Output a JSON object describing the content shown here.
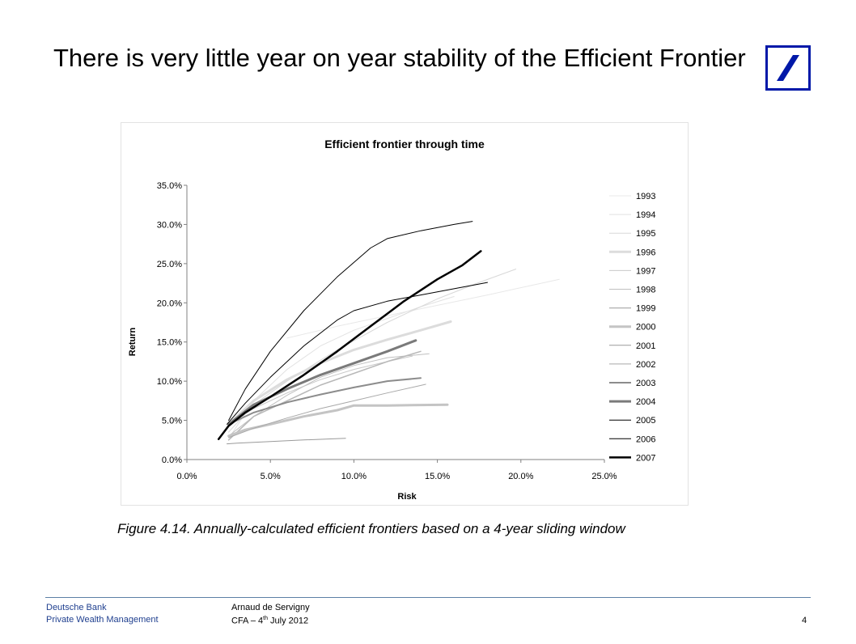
{
  "slide": {
    "title": "There is very little year on year stability of the Efficient Frontier",
    "caption": "Figure 4.14.  Annually-calculated efficient frontiers based on a 4-year sliding window"
  },
  "footer": {
    "company": "Deutsche Bank",
    "division": "Private Wealth Management",
    "author": "Arnaud de Servigny",
    "event_prefix": "CFA – 4",
    "event_sup": "th",
    "event_suffix": " July 2012",
    "page_number": "4"
  },
  "colors": {
    "brand_blue": "#0018a8",
    "footer_blue": "#1f3f8f"
  },
  "chart_data": {
    "type": "line",
    "title": "Efficient frontier through time",
    "xlabel": "Risk",
    "ylabel": "Return",
    "xlim": [
      0,
      25
    ],
    "ylim": [
      0,
      35
    ],
    "x_ticks": [
      "0.0%",
      "5.0%",
      "10.0%",
      "15.0%",
      "20.0%",
      "25.0%"
    ],
    "y_ticks": [
      "0.0%",
      "5.0%",
      "10.0%",
      "15.0%",
      "20.0%",
      "25.0%",
      "30.0%",
      "35.0%"
    ],
    "legend_position": "right",
    "series": [
      {
        "name": "1993",
        "color": "#e8e8e8",
        "width": 1,
        "x": [
          6.0,
          9.0,
          13.0,
          18.0,
          22.3
        ],
        "y": [
          15.5,
          17.0,
          18.8,
          21.0,
          23.0
        ]
      },
      {
        "name": "1994",
        "color": "#e2e2e2",
        "width": 1,
        "x": [
          2.6,
          4.0,
          6.0,
          8.0,
          10.0,
          12.0,
          14.0,
          16.0
        ],
        "y": [
          3.0,
          7.5,
          11.5,
          14.5,
          16.5,
          18.0,
          19.5,
          20.8
        ]
      },
      {
        "name": "1995",
        "color": "#d8d8d8",
        "width": 1,
        "x": [
          2.5,
          4.0,
          6.0,
          9.0,
          12.0,
          15.0,
          17.5,
          19.7
        ],
        "y": [
          3.5,
          7.0,
          10.0,
          14.0,
          17.5,
          20.5,
          22.6,
          24.3
        ]
      },
      {
        "name": "1996",
        "color": "#dcdcdc",
        "width": 3,
        "x": [
          2.5,
          4.0,
          6.0,
          8.0,
          10.0,
          12.0,
          14.0,
          15.8
        ],
        "y": [
          4.5,
          7.5,
          10.2,
          12.3,
          14.0,
          15.3,
          16.5,
          17.6
        ]
      },
      {
        "name": "1997",
        "color": "#c8c8c8",
        "width": 1,
        "x": [
          2.5,
          4.0,
          6.0,
          8.0,
          10.0,
          12.0,
          13.5
        ],
        "y": [
          4.5,
          6.5,
          8.5,
          10.2,
          11.5,
          12.5,
          13.2
        ]
      },
      {
        "name": "1998",
        "color": "#c0c0c0",
        "width": 1,
        "x": [
          2.5,
          4.0,
          6.0,
          8.0,
          10.0,
          12.0,
          14.5
        ],
        "y": [
          3.0,
          5.5,
          8.2,
          10.5,
          12.0,
          13.0,
          13.5
        ]
      },
      {
        "name": "1999",
        "color": "#b8b8b8",
        "width": 1.5,
        "x": [
          2.5,
          4.0,
          6.0,
          8.0,
          10.0,
          12.0,
          14.0
        ],
        "y": [
          2.5,
          5.5,
          7.5,
          9.5,
          11.0,
          12.5,
          13.8
        ]
      },
      {
        "name": "2000",
        "color": "#c4c4c4",
        "width": 3,
        "x": [
          2.5,
          3.5,
          5.0,
          7.0,
          9.0,
          10.0,
          12.0,
          15.6
        ],
        "y": [
          3.0,
          3.8,
          4.5,
          5.5,
          6.3,
          6.9,
          6.9,
          7.0
        ]
      },
      {
        "name": "2001",
        "color": "#9a9a9a",
        "width": 1,
        "x": [
          2.4,
          3.0,
          5.0,
          7.0,
          9.5
        ],
        "y": [
          2.0,
          2.1,
          2.3,
          2.5,
          2.7
        ]
      },
      {
        "name": "2002",
        "color": "#a8a8a8",
        "width": 1,
        "x": [
          2.5,
          4.0,
          6.0,
          8.0,
          10.0,
          12.0,
          14.3
        ],
        "y": [
          2.8,
          4.0,
          5.3,
          6.5,
          7.5,
          8.5,
          9.6
        ]
      },
      {
        "name": "2003",
        "color": "#8c8c8c",
        "width": 2,
        "x": [
          2.5,
          4.0,
          6.0,
          8.0,
          10.0,
          12.0,
          14.0
        ],
        "y": [
          4.5,
          6.0,
          7.3,
          8.3,
          9.2,
          10.0,
          10.4
        ]
      },
      {
        "name": "2004",
        "color": "#7a7a7a",
        "width": 3,
        "x": [
          2.5,
          4.0,
          6.0,
          8.0,
          10.0,
          12.0,
          13.7
        ],
        "y": [
          4.5,
          7.0,
          9.0,
          10.8,
          12.3,
          13.8,
          15.2
        ]
      },
      {
        "name": "2005",
        "color": "#000000",
        "width": 1,
        "x": [
          2.4,
          3.5,
          5.0,
          7.0,
          9.0,
          10.0,
          12.0,
          14.0,
          16.0,
          18.0
        ],
        "y": [
          4.5,
          7.2,
          10.5,
          14.5,
          17.8,
          19.0,
          20.2,
          21.0,
          21.8,
          22.6
        ]
      },
      {
        "name": "2006",
        "color": "#000000",
        "width": 1,
        "x": [
          2.5,
          3.5,
          5.0,
          7.0,
          9.0,
          11.0,
          12.0,
          14.0,
          16.0,
          17.1
        ],
        "y": [
          5.0,
          9.0,
          13.8,
          19.0,
          23.3,
          27.0,
          28.2,
          29.2,
          30.0,
          30.4
        ]
      },
      {
        "name": "2007",
        "color": "#000000",
        "width": 2.5,
        "x": [
          1.9,
          2.5,
          3.5,
          5.0,
          7.0,
          9.0,
          11.0,
          13.0,
          15.0,
          16.5,
          17.6
        ],
        "y": [
          2.6,
          4.3,
          6.0,
          8.0,
          10.8,
          13.8,
          17.0,
          20.2,
          23.0,
          24.8,
          26.6
        ]
      }
    ]
  }
}
